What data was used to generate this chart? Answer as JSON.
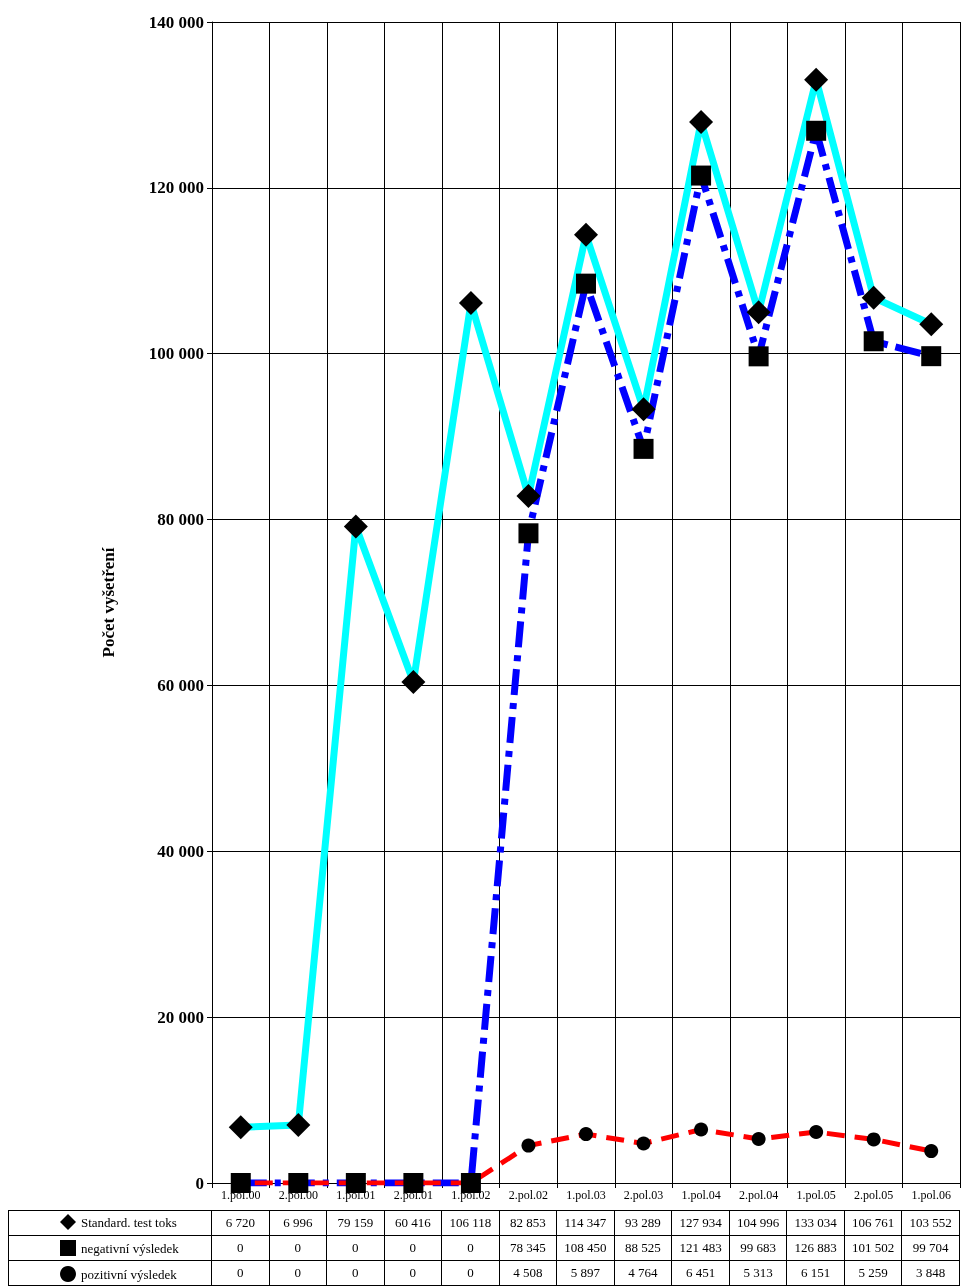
{
  "chart_data": {
    "type": "line",
    "ylabel": "Počet vyšetření",
    "categories": [
      "1.pol.00",
      "2.pol.00",
      "1.pol.01",
      "2.pol.01",
      "1.pol.02",
      "2.pol.02",
      "1.pol.03",
      "2.pol.03",
      "1.pol.04",
      "2.pol.04",
      "1.pol.05",
      "2.pol.05",
      "1.pol.06"
    ],
    "series": [
      {
        "name": "Standard. test toks",
        "color": "#00ffff",
        "marker": "diamond",
        "line_style": "solid",
        "values": [
          6720,
          6996,
          79159,
          60416,
          106118,
          82853,
          114347,
          93289,
          127934,
          104996,
          133034,
          106761,
          103552
        ],
        "value_labels": [
          "6 720",
          "6 996",
          "79 159",
          "60 416",
          "106 118",
          "82 853",
          "114 347",
          "93 289",
          "127 934",
          "104 996",
          "133 034",
          "106 761",
          "103 552"
        ]
      },
      {
        "name": "negativní výsledek",
        "color": "#0000ff",
        "marker": "square",
        "line_style": "dashed",
        "values": [
          0,
          0,
          0,
          0,
          0,
          78345,
          108450,
          88525,
          121483,
          99683,
          126883,
          101502,
          99704
        ],
        "value_labels": [
          "0",
          "0",
          "0",
          "0",
          "0",
          "78 345",
          "108 450",
          "88 525",
          "121 483",
          "99 683",
          "126 883",
          "101 502",
          "99 704"
        ]
      },
      {
        "name": "pozitivní výsledek",
        "color": "#ff0000",
        "marker": "circle",
        "line_style": "dashed",
        "values": [
          0,
          0,
          0,
          0,
          0,
          4508,
          5897,
          4764,
          6451,
          5313,
          6151,
          5259,
          3848
        ],
        "value_labels": [
          "0",
          "0",
          "0",
          "0",
          "0",
          "4 508",
          "5 897",
          "4 764",
          "6 451",
          "5 313",
          "6 151",
          "5 259",
          "3 848"
        ]
      }
    ],
    "ylim": [
      0,
      140000
    ],
    "yticks": [
      {
        "value": 0,
        "label": "0"
      },
      {
        "value": 20000,
        "label": "20 000"
      },
      {
        "value": 40000,
        "label": "40 000"
      },
      {
        "value": 60000,
        "label": "60 000"
      },
      {
        "value": 80000,
        "label": "80 000"
      },
      {
        "value": 100000,
        "label": "100 000"
      },
      {
        "value": 120000,
        "label": "120 000"
      },
      {
        "value": 140000,
        "label": "140 000"
      }
    ],
    "grid": true,
    "legend": "bottom"
  }
}
